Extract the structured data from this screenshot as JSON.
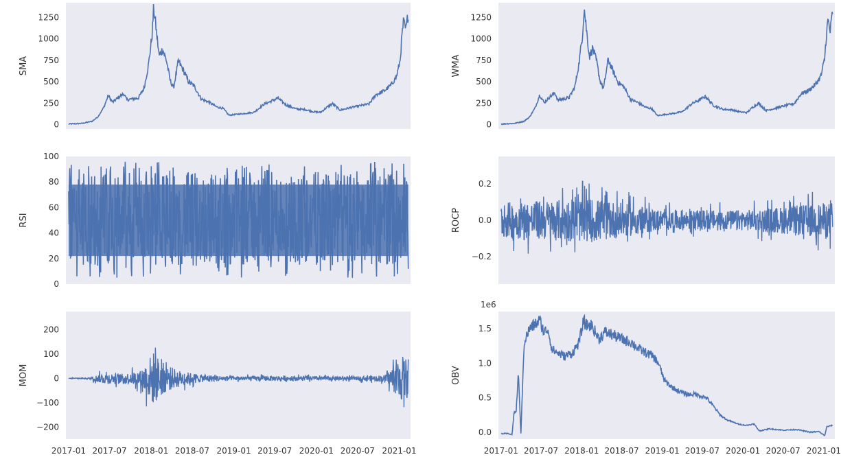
{
  "figure": {
    "background": "#ffffff",
    "panel_color": "#eaeaf2",
    "line_color": "#4c72b0",
    "text_color": "#333333",
    "shared_x": true
  },
  "chart_data": [
    {
      "type": "line",
      "ylabel": "SMA",
      "x_ticks": [
        "2017-01",
        "2017-07",
        "2018-01",
        "2018-07",
        "2019-01",
        "2019-07",
        "2020-01",
        "2020-07",
        "2021-01"
      ],
      "y_ticks": [
        "0",
        "250",
        "500",
        "750",
        "1000",
        "1250"
      ],
      "y_tick_values": [
        0,
        250,
        500,
        750,
        1000,
        1250
      ],
      "ylim": [
        -50,
        1420
      ],
      "xlim": [
        "2016-12-20",
        "2021-02-20"
      ],
      "grid": false,
      "series": [
        {
          "x": [
            "2017-01-01",
            "2017-03-01",
            "2017-04-15",
            "2017-05-10",
            "2017-06-05",
            "2017-06-25",
            "2017-07-15",
            "2017-08-10",
            "2017-09-02",
            "2017-09-15",
            "2017-10-10",
            "2017-11-05",
            "2017-12-01",
            "2017-12-20",
            "2018-01-05",
            "2018-01-12",
            "2018-01-20",
            "2018-02-05",
            "2018-02-20",
            "2018-03-10",
            "2018-03-25",
            "2018-04-10",
            "2018-05-01",
            "2018-05-20",
            "2018-06-15",
            "2018-07-10",
            "2018-08-10",
            "2018-09-15",
            "2018-10-15",
            "2018-11-15",
            "2018-12-10",
            "2019-01-10",
            "2019-02-15",
            "2019-04-01",
            "2019-05-15",
            "2019-06-20",
            "2019-07-15",
            "2019-08-20",
            "2019-10-01",
            "2019-11-15",
            "2019-12-20",
            "2020-01-20",
            "2020-02-15",
            "2020-03-12",
            "2020-04-15",
            "2020-06-01",
            "2020-07-20",
            "2020-08-20",
            "2020-09-20",
            "2020-10-25",
            "2020-11-25",
            "2020-12-20",
            "2021-01-05",
            "2021-01-12",
            "2021-01-20",
            "2021-01-30",
            "2021-02-10"
          ],
          "values": [
            8,
            15,
            40,
            90,
            200,
            340,
            260,
            320,
            360,
            290,
            300,
            310,
            430,
            700,
            1050,
            1360,
            1180,
            800,
            880,
            740,
            520,
            430,
            740,
            650,
            500,
            450,
            300,
            260,
            210,
            190,
            110,
            120,
            130,
            145,
            240,
            280,
            310,
            230,
            185,
            175,
            150,
            145,
            200,
            245,
            170,
            200,
            225,
            240,
            350,
            390,
            460,
            560,
            750,
            1000,
            1200,
            1100,
            1300
          ]
        }
      ]
    },
    {
      "type": "line",
      "ylabel": "WMA",
      "x_ticks": [
        "2017-01",
        "2017-07",
        "2018-01",
        "2018-07",
        "2019-01",
        "2019-07",
        "2020-01",
        "2020-07",
        "2021-01"
      ],
      "y_ticks": [
        "0",
        "250",
        "500",
        "750",
        "1000",
        "1250"
      ],
      "y_tick_values": [
        0,
        250,
        500,
        750,
        1000,
        1250
      ],
      "ylim": [
        -50,
        1420
      ],
      "xlim": [
        "2016-12-20",
        "2021-02-20"
      ],
      "grid": false,
      "series": [
        {
          "x": [
            "2017-01-01",
            "2017-03-01",
            "2017-04-15",
            "2017-05-10",
            "2017-06-05",
            "2017-06-25",
            "2017-07-15",
            "2017-08-10",
            "2017-09-02",
            "2017-09-15",
            "2017-10-10",
            "2017-11-05",
            "2017-12-01",
            "2017-12-20",
            "2018-01-05",
            "2018-01-12",
            "2018-01-20",
            "2018-02-05",
            "2018-02-20",
            "2018-03-10",
            "2018-03-25",
            "2018-04-10",
            "2018-05-01",
            "2018-05-20",
            "2018-06-15",
            "2018-07-10",
            "2018-08-10",
            "2018-09-15",
            "2018-10-15",
            "2018-11-15",
            "2018-12-10",
            "2019-01-10",
            "2019-02-15",
            "2019-04-01",
            "2019-05-15",
            "2019-06-20",
            "2019-07-15",
            "2019-08-20",
            "2019-10-01",
            "2019-11-15",
            "2019-12-20",
            "2020-01-20",
            "2020-02-15",
            "2020-03-12",
            "2020-04-15",
            "2020-06-01",
            "2020-07-20",
            "2020-08-20",
            "2020-09-20",
            "2020-10-25",
            "2020-11-25",
            "2020-12-20",
            "2021-01-05",
            "2021-01-12",
            "2021-01-20",
            "2021-01-30",
            "2021-02-10"
          ],
          "values": [
            8,
            15,
            40,
            90,
            200,
            350,
            255,
            325,
            370,
            285,
            300,
            315,
            440,
            720,
            1060,
            1370,
            1170,
            790,
            890,
            730,
            510,
            420,
            760,
            640,
            490,
            445,
            295,
            255,
            205,
            185,
            105,
            118,
            130,
            150,
            245,
            290,
            330,
            225,
            180,
            172,
            148,
            142,
            205,
            250,
            165,
            195,
            228,
            245,
            360,
            400,
            470,
            570,
            770,
            1020,
            1220,
            1080,
            1320
          ]
        }
      ]
    },
    {
      "type": "line",
      "ylabel": "RSI",
      "x_ticks": [
        "2017-01",
        "2017-07",
        "2018-01",
        "2018-07",
        "2019-01",
        "2019-07",
        "2020-01",
        "2020-07",
        "2021-01"
      ],
      "y_ticks": [
        "0",
        "20",
        "40",
        "60",
        "80",
        "100"
      ],
      "y_tick_values": [
        0,
        20,
        40,
        60,
        80,
        100
      ],
      "ylim": [
        0,
        100
      ],
      "xlim": [
        "2016-12-20",
        "2021-02-20"
      ],
      "grid": false,
      "series": [
        {
          "x": [
            "2017-01-01",
            "2021-02-10"
          ],
          "band_low": [
            15,
            15
          ],
          "band_high": [
            88,
            88
          ],
          "min": 4,
          "max": 96,
          "values": [
            50,
            50
          ]
        }
      ]
    },
    {
      "type": "line",
      "ylabel": "ROCP",
      "x_ticks": [
        "2017-01",
        "2017-07",
        "2018-01",
        "2018-07",
        "2019-01",
        "2019-07",
        "2020-01",
        "2020-07",
        "2021-01"
      ],
      "y_ticks": [
        "−0.2",
        "0.0",
        "0.2"
      ],
      "y_tick_values": [
        -0.2,
        0.0,
        0.2
      ],
      "ylim": [
        -0.35,
        0.35
      ],
      "xlim": [
        "2016-12-20",
        "2021-02-20"
      ],
      "grid": false,
      "series": [
        {
          "x": [
            "2017-01-01",
            "2018-03-01",
            "2019-01-01",
            "2020-01-01",
            "2021-02-10"
          ],
          "amplitude": [
            0.18,
            0.22,
            0.1,
            0.1,
            0.18
          ],
          "values": [
            0,
            0,
            0,
            0,
            0
          ]
        }
      ]
    },
    {
      "type": "line",
      "ylabel": "MOM",
      "x_ticks": [
        "2017-01",
        "2017-07",
        "2018-01",
        "2018-07",
        "2019-01",
        "2019-07",
        "2020-01",
        "2020-07",
        "2021-01"
      ],
      "y_ticks": [
        "−200",
        "−100",
        "0",
        "100",
        "200"
      ],
      "y_tick_values": [
        -200,
        -100,
        0,
        100,
        200
      ],
      "ylim": [
        -250,
        275
      ],
      "xlim": [
        "2016-12-20",
        "2021-02-20"
      ],
      "grid": false,
      "series": [
        {
          "x": [
            "2017-01-01",
            "2017-04-01",
            "2017-06-01",
            "2017-09-01",
            "2017-11-15",
            "2018-01-10",
            "2018-03-01",
            "2018-05-01",
            "2018-08-01",
            "2019-01-01",
            "2019-07-01",
            "2020-01-01",
            "2020-07-01",
            "2020-11-01",
            "2021-01-10",
            "2021-02-10"
          ],
          "amplitude": [
            2,
            5,
            40,
            35,
            60,
            200,
            110,
            60,
            30,
            15,
            20,
            15,
            15,
            25,
            170,
            150
          ],
          "values": [
            0,
            0,
            0,
            0,
            0,
            0,
            0,
            0,
            0,
            0,
            0,
            0,
            0,
            0,
            0,
            0
          ]
        }
      ]
    },
    {
      "type": "line",
      "ylabel": "OBV",
      "offset_text": "1e6",
      "x_ticks": [
        "2017-01",
        "2017-07",
        "2018-01",
        "2018-07",
        "2019-01",
        "2019-07",
        "2020-01",
        "2020-07",
        "2021-01"
      ],
      "y_ticks": [
        "0.0",
        "0.5",
        "1.0",
        "1.5"
      ],
      "y_tick_values": [
        0.0,
        0.5,
        1.0,
        1.5
      ],
      "ylim": [
        -0.1,
        1.75
      ],
      "xlim": [
        "2016-12-20",
        "2021-02-20"
      ],
      "grid": false,
      "series": [
        {
          "x": [
            "2017-01-01",
            "2017-02-01",
            "2017-02-20",
            "2017-03-01",
            "2017-03-10",
            "2017-03-20",
            "2017-04-01",
            "2017-04-15",
            "2017-05-10",
            "2017-06-10",
            "2017-06-25",
            "2017-07-15",
            "2017-08-01",
            "2017-08-20",
            "2017-09-15",
            "2017-10-15",
            "2017-11-20",
            "2017-12-20",
            "2018-01-10",
            "2018-01-20",
            "2018-02-15",
            "2018-03-20",
            "2018-04-15",
            "2018-05-15",
            "2018-07-01",
            "2018-08-15",
            "2018-09-20",
            "2018-10-20",
            "2018-11-20",
            "2018-12-15",
            "2019-01-10",
            "2019-02-15",
            "2019-03-15",
            "2019-04-20",
            "2019-06-01",
            "2019-07-20",
            "2019-08-20",
            "2019-09-20",
            "2019-10-20",
            "2019-12-10",
            "2020-01-15",
            "2020-02-20",
            "2020-03-15",
            "2020-05-01",
            "2020-07-01",
            "2020-09-01",
            "2020-11-01",
            "2020-12-10",
            "2021-01-05",
            "2021-01-15",
            "2021-02-10"
          ],
          "values": [
            -0.02,
            -0.02,
            -0.03,
            0.3,
            0.28,
            0.85,
            -0.02,
            1.3,
            1.5,
            1.58,
            1.62,
            1.45,
            1.5,
            1.2,
            1.15,
            1.1,
            1.15,
            1.3,
            1.62,
            1.55,
            1.55,
            1.35,
            1.45,
            1.42,
            1.35,
            1.3,
            1.2,
            1.15,
            1.1,
            1.0,
            0.75,
            0.65,
            0.6,
            0.55,
            0.55,
            0.5,
            0.38,
            0.25,
            0.18,
            0.12,
            0.1,
            0.12,
            0.02,
            0.05,
            0.03,
            0.04,
            0.0,
            0.01,
            -0.05,
            0.08,
            0.1
          ]
        }
      ]
    }
  ]
}
